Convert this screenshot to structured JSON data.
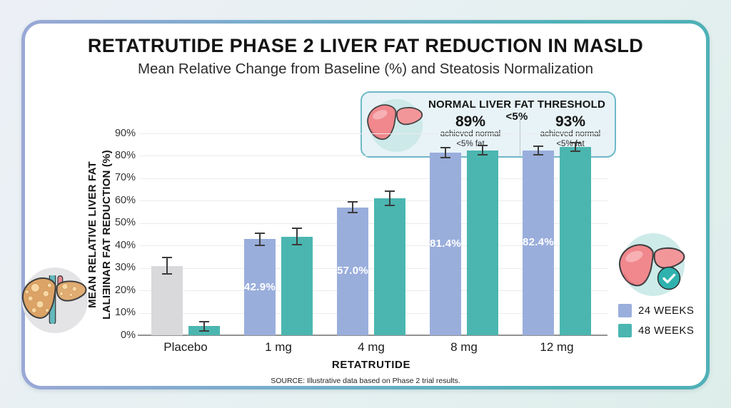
{
  "page": {
    "title": "RETATRUTIDE PHASE 2 LIVER FAT REDUCTION IN MASLD",
    "subtitle": "Mean Relative Change from Baseline (%) and Steatosis Normalization",
    "source": "SOURCE: Illustrative data based on Phase 2 trial results."
  },
  "threshold_box": {
    "title": "NORMAL LIVER FAT THRESHOLD <5%",
    "columns": [
      {
        "percent": "89%",
        "line1": "achieved normal",
        "line2": "<5% fat"
      },
      {
        "percent": "93%",
        "line1": "achieved normal",
        "line2": "<5% fat"
      }
    ]
  },
  "legend": {
    "items": [
      {
        "label": "24 WEEKS",
        "color": "#9AAEDC"
      },
      {
        "label": "48 WEEKS",
        "color": "#4BB6B0"
      }
    ]
  },
  "chart_data": {
    "type": "bar",
    "categories": [
      "Placebo",
      "1 mg",
      "4 mg",
      "8 mg",
      "12 mg"
    ],
    "series": [
      {
        "name": "24 WEEKS",
        "color": "#9AAEDC",
        "values": [
          31,
          42.9,
          57.0,
          81.4,
          82.4
        ],
        "errors": [
          4,
          3,
          2.7,
          2.5,
          2.2
        ],
        "bar_labels": [
          "",
          "42.9%",
          "57.0%",
          "81.4%",
          "82.4%"
        ],
        "category_color_overrides": {
          "0": "#D9D9DB"
        }
      },
      {
        "name": "48 WEEKS",
        "color": "#4BB6B0",
        "values": [
          4,
          44,
          61,
          82.5,
          84
        ],
        "errors": [
          2.5,
          4,
          3.5,
          2.5,
          2.3
        ],
        "bar_labels": [
          "",
          "",
          "",
          "",
          ""
        ]
      }
    ],
    "xlabel": "RETATRUTIDE",
    "ylabel_lines": [
      "MEAN RELATIVE LIVER FAT",
      "LALIƎINAR FAT REDUCTION (%)"
    ],
    "yticks": [
      "0%",
      "10%",
      "20%",
      "30%",
      "40%",
      "50%",
      "60%",
      "70%",
      "80%",
      "90%"
    ],
    "ylim": [
      0,
      90
    ],
    "grid": true,
    "legend_position": "right-bottom",
    "bar_label_color": "#FFFFFF"
  },
  "icons": {
    "fatty_liver": "fatty-liver",
    "healthy_liver": "healthy-liver",
    "checkmark": "✓"
  },
  "colors": {
    "accent_teal": "#4BB6B0",
    "accent_periwinkle": "#9AAEDC",
    "placebo_gray": "#D9D9DB",
    "card_border_left": "#9AA8D6",
    "card_border_right": "#4FB1B7",
    "threshold_box_bg": "#E7F3F7",
    "threshold_box_border": "#6FB9C9",
    "gridline": "#EBEBEB"
  }
}
